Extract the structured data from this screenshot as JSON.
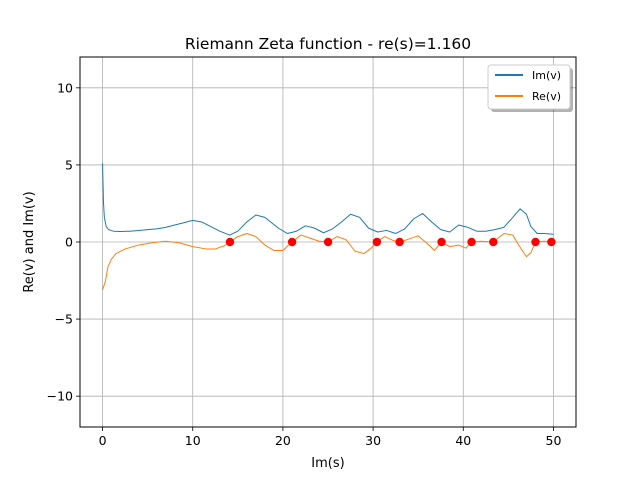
{
  "chart_data": {
    "type": "line",
    "title": "Riemann Zeta function - re(s)=1.160",
    "xlabel": "Im(s)",
    "ylabel": "Re(v) and Im(v)",
    "xlim": [
      -2.5,
      52.5
    ],
    "ylim": [
      12,
      -12
    ],
    "y_inverted": true,
    "x_ticks": [
      0,
      10,
      20,
      30,
      40,
      50
    ],
    "x_tick_labels": [
      "0",
      "10",
      "20",
      "30",
      "40",
      "50"
    ],
    "y_ticks": [
      -10,
      -5,
      0,
      5,
      10
    ],
    "y_tick_labels": [
      "−10",
      "−5",
      "0",
      "5",
      "10"
    ],
    "grid": true,
    "legend_position": "top-right",
    "series": [
      {
        "name": "Im(v)",
        "color": "#1f77b4",
        "points": [
          [
            0,
            5.1
          ],
          [
            0.1,
            2.6
          ],
          [
            0.2,
            1.6
          ],
          [
            0.4,
            1.0
          ],
          [
            0.7,
            0.8
          ],
          [
            1.2,
            0.7
          ],
          [
            2,
            0.68
          ],
          [
            3,
            0.7
          ],
          [
            4,
            0.75
          ],
          [
            5,
            0.8
          ],
          [
            6,
            0.85
          ],
          [
            7,
            0.95
          ],
          [
            8,
            1.1
          ],
          [
            9,
            1.25
          ],
          [
            10,
            1.4
          ],
          [
            11,
            1.3
          ],
          [
            12,
            1.0
          ],
          [
            13,
            0.7
          ],
          [
            14.1,
            0.45
          ],
          [
            15,
            0.7
          ],
          [
            16,
            1.3
          ],
          [
            17,
            1.75
          ],
          [
            18,
            1.6
          ],
          [
            19.5,
            0.9
          ],
          [
            20.5,
            0.55
          ],
          [
            21.5,
            0.7
          ],
          [
            22.5,
            1.05
          ],
          [
            23.5,
            0.9
          ],
          [
            24.5,
            0.6
          ],
          [
            25.5,
            0.85
          ],
          [
            26.5,
            1.3
          ],
          [
            27.5,
            1.8
          ],
          [
            28.5,
            1.6
          ],
          [
            29.5,
            0.9
          ],
          [
            30.5,
            0.65
          ],
          [
            31.5,
            0.75
          ],
          [
            32.5,
            0.55
          ],
          [
            33.5,
            0.85
          ],
          [
            34.5,
            1.5
          ],
          [
            35.5,
            1.85
          ],
          [
            36.5,
            1.3
          ],
          [
            37.5,
            0.8
          ],
          [
            38.5,
            0.65
          ],
          [
            39.5,
            1.1
          ],
          [
            40.5,
            0.95
          ],
          [
            41.5,
            0.7
          ],
          [
            42.5,
            0.7
          ],
          [
            43.5,
            0.8
          ],
          [
            44.5,
            0.95
          ],
          [
            45.5,
            1.6
          ],
          [
            46.3,
            2.15
          ],
          [
            47,
            1.8
          ],
          [
            47.5,
            1.0
          ],
          [
            48.2,
            0.55
          ],
          [
            49,
            0.55
          ],
          [
            50,
            0.5
          ]
        ]
      },
      {
        "name": "Re(v)",
        "color": "#ff7f0e",
        "points": [
          [
            0,
            -3.1
          ],
          [
            0.3,
            -2.6
          ],
          [
            0.6,
            -1.6
          ],
          [
            1,
            -1.1
          ],
          [
            1.5,
            -0.75
          ],
          [
            2.5,
            -0.45
          ],
          [
            4,
            -0.2
          ],
          [
            5.5,
            -0.05
          ],
          [
            7,
            0.05
          ],
          [
            8.5,
            -0.05
          ],
          [
            10,
            -0.3
          ],
          [
            11.5,
            -0.45
          ],
          [
            12.5,
            -0.45
          ],
          [
            13.5,
            -0.25
          ],
          [
            14.1,
            0.0
          ],
          [
            15,
            0.35
          ],
          [
            16,
            0.55
          ],
          [
            17,
            0.35
          ],
          [
            18,
            -0.2
          ],
          [
            19,
            -0.55
          ],
          [
            20,
            -0.55
          ],
          [
            21.0,
            0.0
          ],
          [
            22,
            0.45
          ],
          [
            23,
            0.25
          ],
          [
            24,
            0.05
          ],
          [
            25.0,
            0.0
          ],
          [
            26,
            0.35
          ],
          [
            27,
            0.15
          ],
          [
            28,
            -0.6
          ],
          [
            29,
            -0.75
          ],
          [
            29.8,
            -0.4
          ],
          [
            30.4,
            0.0
          ],
          [
            31.3,
            0.35
          ],
          [
            32.2,
            0.1
          ],
          [
            33.0,
            0.0
          ],
          [
            34,
            0.2
          ],
          [
            35,
            0.4
          ],
          [
            36,
            -0.1
          ],
          [
            36.8,
            -0.55
          ],
          [
            37.6,
            0.0
          ],
          [
            38.5,
            -0.3
          ],
          [
            39.5,
            -0.2
          ],
          [
            40.3,
            -0.4
          ],
          [
            40.9,
            0.0
          ],
          [
            42,
            0.05
          ],
          [
            43.3,
            0.0
          ],
          [
            44.5,
            0.55
          ],
          [
            45.5,
            0.45
          ],
          [
            46.2,
            -0.25
          ],
          [
            47,
            -0.95
          ],
          [
            47.5,
            -0.7
          ],
          [
            48.0,
            0.0
          ],
          [
            49,
            0.05
          ],
          [
            49.8,
            0.0
          ]
        ]
      },
      {
        "name": "",
        "type": "scatter",
        "color": "#ff0000",
        "points": [
          [
            14.13,
            0
          ],
          [
            21.02,
            0
          ],
          [
            25.01,
            0
          ],
          [
            30.42,
            0
          ],
          [
            32.94,
            0
          ],
          [
            37.59,
            0
          ],
          [
            40.92,
            0
          ],
          [
            43.33,
            0
          ],
          [
            48.01,
            0
          ],
          [
            49.77,
            0
          ]
        ]
      }
    ]
  }
}
